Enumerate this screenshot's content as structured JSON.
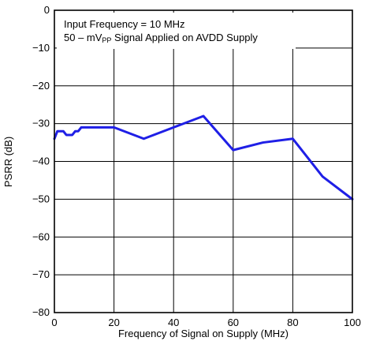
{
  "chart_data": {
    "type": "line",
    "xlabel": "Frequency of Signal on Supply (MHz)",
    "ylabel": "PSRR (dB)",
    "xlim": [
      0,
      100
    ],
    "ylim": [
      -80,
      0
    ],
    "x_ticks": [
      0,
      20,
      40,
      60,
      80,
      100
    ],
    "x_tick_labels": [
      "0",
      "20",
      "40",
      "60",
      "80",
      "100"
    ],
    "y_ticks": [
      0,
      -10,
      -20,
      -30,
      -40,
      -50,
      -60,
      -70,
      -80
    ],
    "y_tick_labels": [
      "0",
      "−10",
      "−20",
      "−30",
      "−40",
      "−50",
      "−60",
      "−70",
      "−80"
    ],
    "grid": true,
    "legend": "none",
    "annotation": {
      "line1": "Input Frequency = 10 MHz",
      "line2_prefix": "50 – mV",
      "line2_sub": "PP",
      "line2_suffix": " Signal Applied on AVDD Supply"
    },
    "series": [
      {
        "color": "#1f1fe6",
        "x": [
          0,
          0.5,
          1,
          2,
          3,
          4,
          5,
          6,
          7,
          8,
          9,
          10,
          20,
          30,
          40,
          50,
          60,
          70,
          80,
          90,
          100
        ],
        "y": [
          -34,
          -33,
          -32,
          -32,
          -32,
          -33,
          -33,
          -33,
          -32,
          -32,
          -31,
          -31,
          -31,
          -34,
          -31,
          -28,
          -37,
          -35,
          -34,
          -44,
          -50
        ]
      }
    ]
  }
}
